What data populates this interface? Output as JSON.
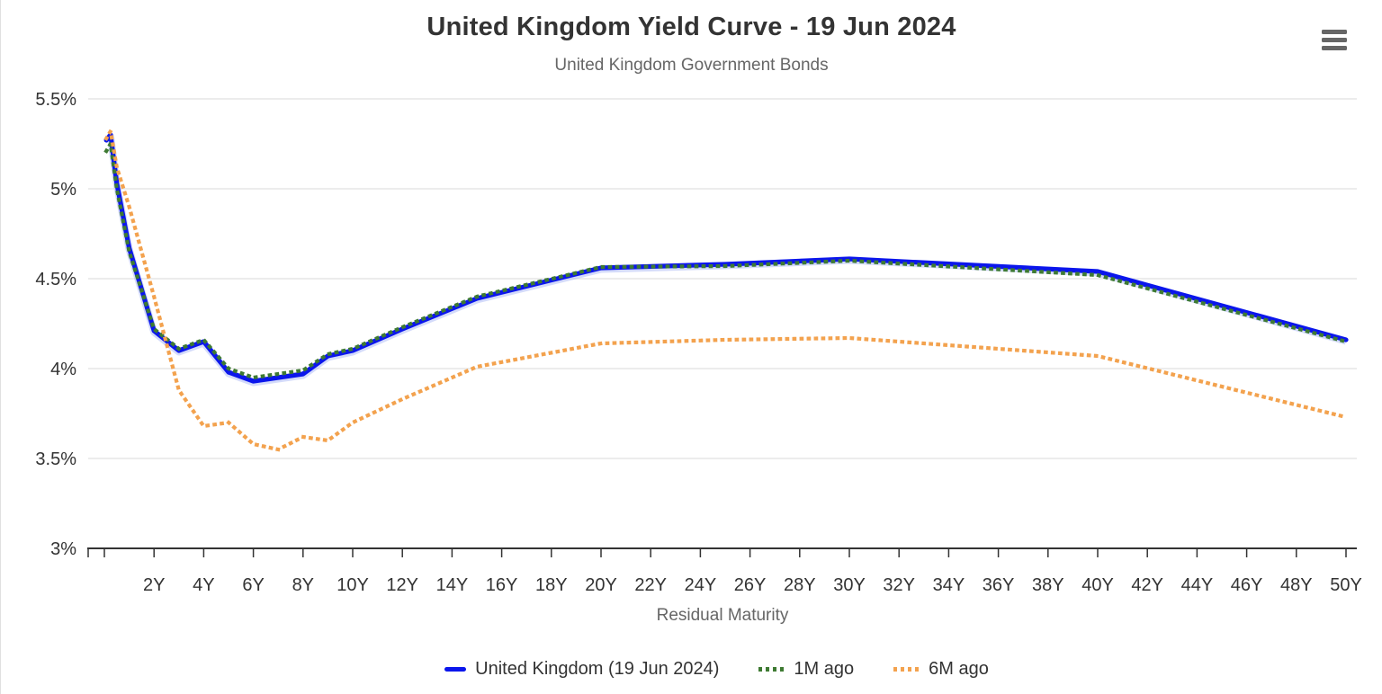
{
  "header": {
    "title": "United Kingdom Yield Curve - 19 Jun 2024",
    "subtitle": "United Kingdom Government Bonds"
  },
  "colors": {
    "uk_blue": "#0b16ec",
    "uk_halo": "#9fb0f4",
    "one_month_green": "#3e7a32",
    "six_month_orange": "#f3a24e",
    "grid": "#e6e6e6",
    "axis": "#333333",
    "title_text": "#333333",
    "muted_text": "#666666"
  },
  "chart_data": {
    "type": "line",
    "title": "United Kingdom Yield Curve - 19 Jun 2024",
    "subtitle": "United Kingdom Government Bonds",
    "xlabel": "Residual Maturity",
    "ylabel": "",
    "ylim": [
      3,
      5.5
    ],
    "xlim_years": [
      0,
      51
    ],
    "grid": true,
    "legend_position": "bottom",
    "y_axis_ticks": [
      {
        "value": 5.5,
        "label": "5.5%"
      },
      {
        "value": 5.0,
        "label": "5%"
      },
      {
        "value": 4.5,
        "label": "4.5%"
      },
      {
        "value": 4.0,
        "label": "4%"
      },
      {
        "value": 3.5,
        "label": "3.5%"
      },
      {
        "value": 3.0,
        "label": "3%"
      }
    ],
    "x_axis_ticks": [
      {
        "year": 0,
        "label": ""
      },
      {
        "year": 2,
        "label": "2Y"
      },
      {
        "year": 4,
        "label": "4Y"
      },
      {
        "year": 6,
        "label": "6Y"
      },
      {
        "year": 8,
        "label": "8Y"
      },
      {
        "year": 10,
        "label": "10Y"
      },
      {
        "year": 12,
        "label": "12Y"
      },
      {
        "year": 14,
        "label": "14Y"
      },
      {
        "year": 16,
        "label": "16Y"
      },
      {
        "year": 18,
        "label": "18Y"
      },
      {
        "year": 20,
        "label": "20Y"
      },
      {
        "year": 22,
        "label": "22Y"
      },
      {
        "year": 24,
        "label": "24Y"
      },
      {
        "year": 26,
        "label": "26Y"
      },
      {
        "year": 28,
        "label": "28Y"
      },
      {
        "year": 30,
        "label": "30Y"
      },
      {
        "year": 32,
        "label": "32Y"
      },
      {
        "year": 34,
        "label": "34Y"
      },
      {
        "year": 36,
        "label": "36Y"
      },
      {
        "year": 38,
        "label": "38Y"
      },
      {
        "year": 40,
        "label": "40Y"
      },
      {
        "year": 42,
        "label": "42Y"
      },
      {
        "year": 44,
        "label": "44Y"
      },
      {
        "year": 46,
        "label": "46Y"
      },
      {
        "year": 48,
        "label": "48Y"
      },
      {
        "year": 50,
        "label": "50Y"
      }
    ],
    "x_years": [
      0.08,
      0.25,
      0.5,
      1,
      2,
      3,
      4,
      5,
      6,
      7,
      8,
      9,
      10,
      12,
      15,
      20,
      25,
      30,
      40,
      50
    ],
    "series": [
      {
        "name": "United Kingdom (19 Jun 2024)",
        "color": "#0b16ec",
        "line_style": "solid",
        "values": [
          5.27,
          5.3,
          5.03,
          4.67,
          4.21,
          4.1,
          4.15,
          3.98,
          3.93,
          3.95,
          3.97,
          4.07,
          4.1,
          4.22,
          4.39,
          4.56,
          4.58,
          4.61,
          4.54,
          4.16
        ]
      },
      {
        "name": "1M ago",
        "color": "#3e7a32",
        "line_style": "dotted",
        "values": [
          5.21,
          5.25,
          5.0,
          4.65,
          4.22,
          4.11,
          4.16,
          4.0,
          3.95,
          3.97,
          3.99,
          4.08,
          4.11,
          4.23,
          4.4,
          4.565,
          4.57,
          4.6,
          4.52,
          4.15
        ]
      },
      {
        "name": "6M ago",
        "color": "#f3a24e",
        "line_style": "dotted",
        "values": [
          5.28,
          5.32,
          5.12,
          4.9,
          4.4,
          3.88,
          3.68,
          3.7,
          3.58,
          3.55,
          3.62,
          3.6,
          3.7,
          3.83,
          4.01,
          4.14,
          4.16,
          4.17,
          4.07,
          3.73
        ]
      }
    ]
  }
}
